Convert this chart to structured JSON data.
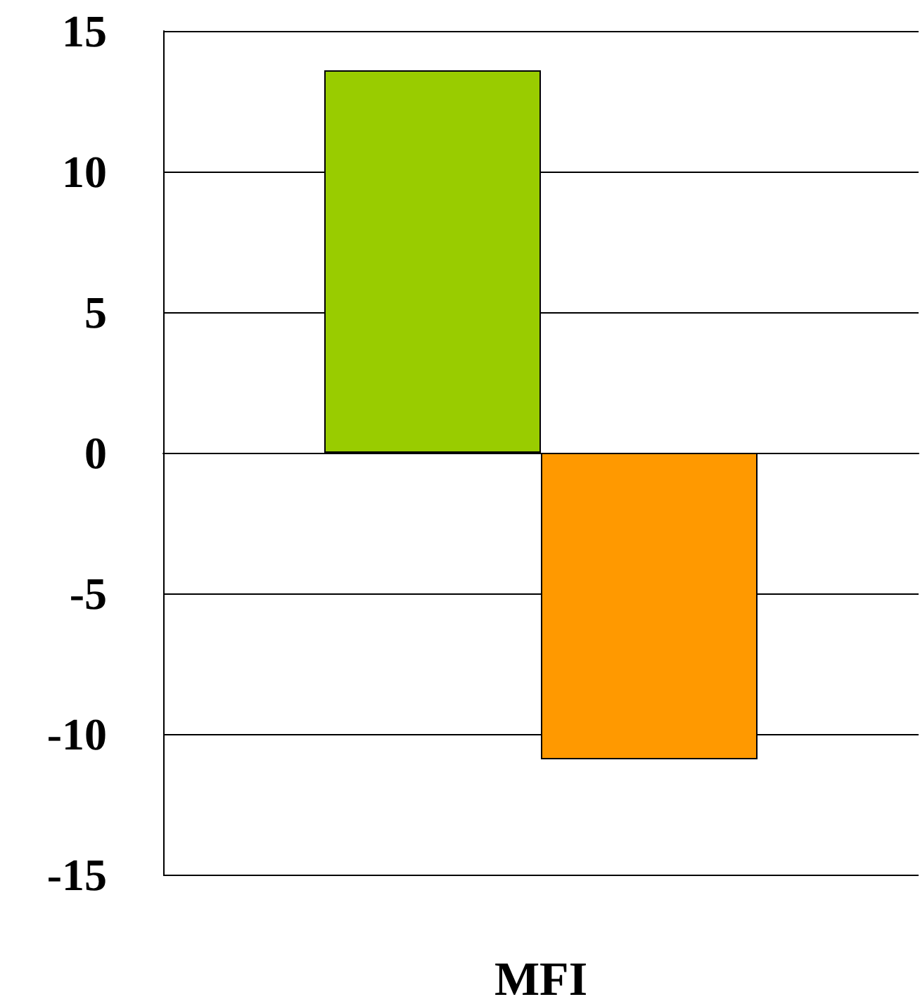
{
  "chart_data": {
    "type": "bar",
    "categories": [
      "MFI"
    ],
    "series": [
      {
        "color": "#99cc00",
        "values": [
          13.6
        ]
      },
      {
        "color": "#ff9900",
        "values": [
          -10.9
        ]
      }
    ],
    "ylim": [
      -15,
      15
    ],
    "yticks": [
      -15,
      -10,
      -5,
      0,
      5,
      10,
      15
    ],
    "grid": "y"
  }
}
